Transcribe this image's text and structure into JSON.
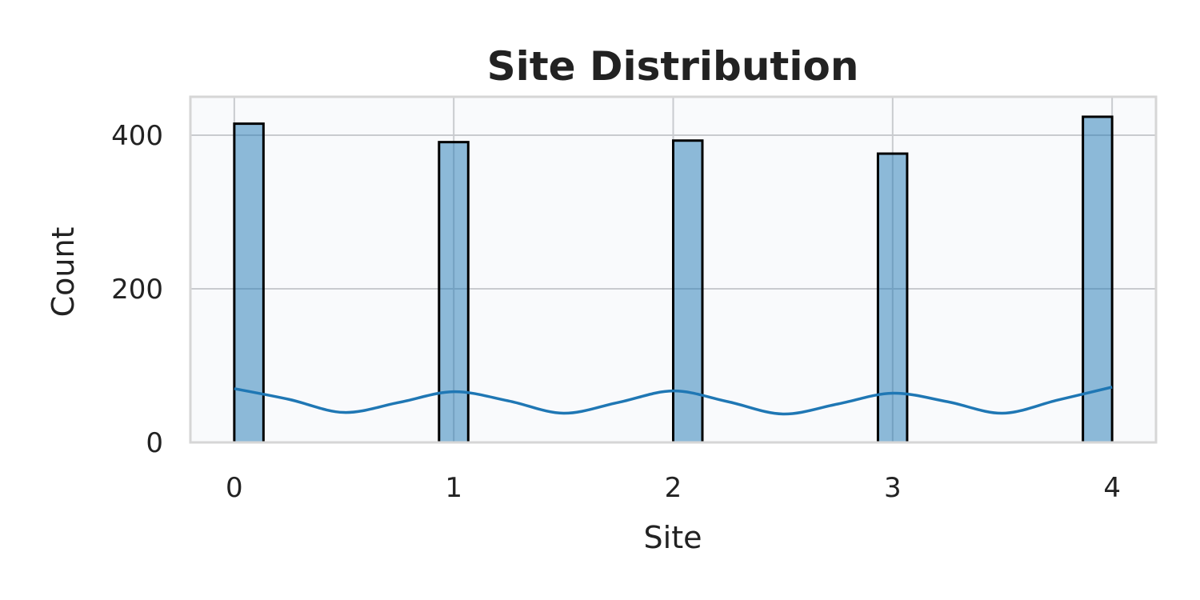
{
  "chart_data": {
    "type": "histogram",
    "title": "Site Distribution",
    "xlabel": "Site",
    "ylabel": "Count",
    "x_ticks": [
      "0",
      "1",
      "2",
      "3",
      "4"
    ],
    "y_ticks": [
      "0",
      "200",
      "400"
    ],
    "xlim": [
      -0.2,
      4.2
    ],
    "ylim": [
      0,
      450
    ],
    "bin_width": 0.133,
    "bars": [
      {
        "x_left": 0.0,
        "value": 415
      },
      {
        "x_left": 0.933,
        "value": 391
      },
      {
        "x_left": 2.0,
        "value": 393
      },
      {
        "x_left": 2.933,
        "value": 376
      },
      {
        "x_left": 3.867,
        "value": 424
      }
    ],
    "kde": {
      "x": [
        0.0,
        0.25,
        0.5,
        0.75,
        1.0,
        1.25,
        1.5,
        1.75,
        2.0,
        2.25,
        2.5,
        2.75,
        3.0,
        3.25,
        3.5,
        3.75,
        4.0
      ],
      "y": [
        70,
        56,
        39,
        52,
        66,
        54,
        38,
        52,
        67,
        53,
        37,
        50,
        64,
        53,
        38,
        55,
        72
      ]
    },
    "grid": true,
    "colors": {
      "bar_fill": "#1f77b4",
      "kde_line": "#1f77b4",
      "plot_background": "#f9fafc"
    }
  }
}
